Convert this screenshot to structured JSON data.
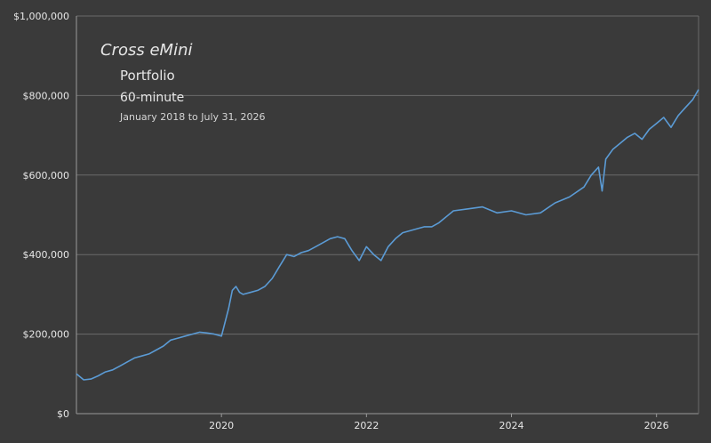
{
  "colors": {
    "background": "#3a3a3a",
    "line": "#5b9bd5",
    "grid": "#6a6a6a",
    "text": "#e6e6e6"
  },
  "titles": {
    "title": "Cross eMini",
    "portfolio": "Portfolio",
    "period": "60-minute",
    "date_range": "January  2018 to July 31, 2026"
  },
  "chart_data": {
    "type": "line",
    "title": "Cross eMini",
    "xlabel": "",
    "ylabel": "",
    "xlim": [
      2018.0,
      2026.58
    ],
    "ylim": [
      0,
      1000000
    ],
    "y_ticks": [
      0,
      200000,
      400000,
      600000,
      800000,
      1000000
    ],
    "y_tick_labels": [
      "$0",
      "$200,000",
      "$400,000",
      "$600,000",
      "$800,000",
      "$1,000,000"
    ],
    "x_ticks": [
      2020,
      2022,
      2024,
      2026
    ],
    "x_tick_labels": [
      "2020",
      "2022",
      "2024",
      "2026"
    ],
    "grid": "horizontal",
    "series": [
      {
        "x": [
          2018.0,
          2018.1,
          2018.2,
          2018.3,
          2018.4,
          2018.5,
          2018.6,
          2018.7,
          2018.8,
          2018.9,
          2019.0,
          2019.1,
          2019.2,
          2019.3,
          2019.4,
          2019.5,
          2019.6,
          2019.7,
          2019.8,
          2019.9,
          2020.0,
          2020.1,
          2020.15,
          2020.2,
          2020.25,
          2020.3,
          2020.4,
          2020.5,
          2020.6,
          2020.7,
          2020.8,
          2020.9,
          2021.0,
          2021.1,
          2021.2,
          2021.3,
          2021.4,
          2021.5,
          2021.6,
          2021.7,
          2021.8,
          2021.9,
          2022.0,
          2022.1,
          2022.2,
          2022.3,
          2022.4,
          2022.5,
          2022.6,
          2022.7,
          2022.8,
          2022.9,
          2023.0,
          2023.2,
          2023.4,
          2023.6,
          2023.8,
          2024.0,
          2024.2,
          2024.4,
          2024.6,
          2024.8,
          2025.0,
          2025.1,
          2025.2,
          2025.25,
          2025.3,
          2025.4,
          2025.5,
          2025.6,
          2025.7,
          2025.8,
          2025.9,
          2026.0,
          2026.1,
          2026.2,
          2026.3,
          2026.4,
          2026.5,
          2026.58
        ],
        "values": [
          100000,
          85000,
          87000,
          95000,
          105000,
          110000,
          120000,
          130000,
          140000,
          145000,
          150000,
          160000,
          170000,
          185000,
          190000,
          195000,
          200000,
          205000,
          203000,
          200000,
          195000,
          265000,
          310000,
          320000,
          305000,
          300000,
          305000,
          310000,
          320000,
          340000,
          370000,
          400000,
          395000,
          405000,
          410000,
          420000,
          430000,
          440000,
          445000,
          440000,
          410000,
          385000,
          420000,
          400000,
          385000,
          420000,
          440000,
          455000,
          460000,
          465000,
          470000,
          470000,
          480000,
          510000,
          515000,
          520000,
          505000,
          510000,
          500000,
          505000,
          530000,
          545000,
          570000,
          600000,
          620000,
          560000,
          640000,
          665000,
          680000,
          695000,
          705000,
          690000,
          715000,
          730000,
          745000,
          720000,
          750000,
          770000,
          790000,
          815000
        ]
      }
    ]
  }
}
